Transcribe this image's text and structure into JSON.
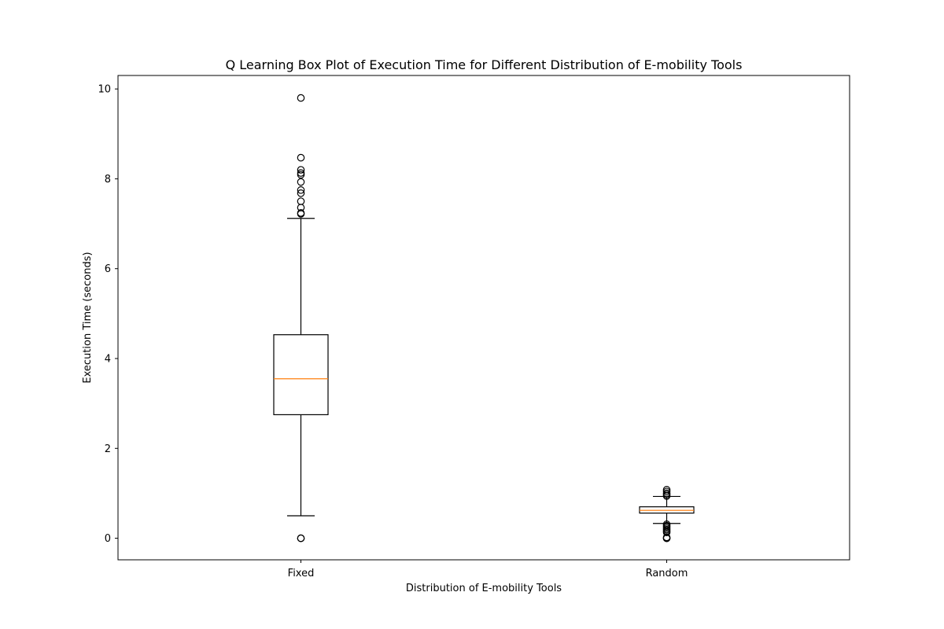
{
  "chart_data": {
    "type": "box",
    "title": "Q Learning Box Plot of Execution Time for Different Distribution of E-mobility Tools",
    "xlabel": "Distribution of E-mobility Tools",
    "ylabel": "Execution Time (seconds)",
    "ylim": [
      -0.48,
      10.3
    ],
    "yticks": [
      0,
      2,
      4,
      6,
      8,
      10
    ],
    "categories": [
      "Fixed",
      "Random"
    ],
    "boxes": [
      {
        "category": "Fixed",
        "whisker_low": 0.5,
        "q1": 2.75,
        "median": 3.55,
        "q3": 4.53,
        "whisker_high": 7.12,
        "outliers": [
          0.0,
          0.0,
          7.22,
          7.24,
          7.36,
          7.5,
          7.68,
          7.75,
          7.93,
          8.09,
          8.13,
          8.2,
          8.47,
          9.8
        ]
      },
      {
        "category": "Random",
        "whisker_low": 0.33,
        "q1": 0.56,
        "median": 0.62,
        "q3": 0.7,
        "whisker_high": 0.93,
        "outliers": [
          0.0,
          0.0,
          0.02,
          0.13,
          0.16,
          0.19,
          0.22,
          0.25,
          0.28,
          0.31,
          0.94,
          0.97,
          1.0,
          1.04,
          1.08
        ]
      }
    ],
    "colors": {
      "box": "#000000",
      "median": "#ff7f0e",
      "outlier": "#000000"
    },
    "grid": false
  }
}
